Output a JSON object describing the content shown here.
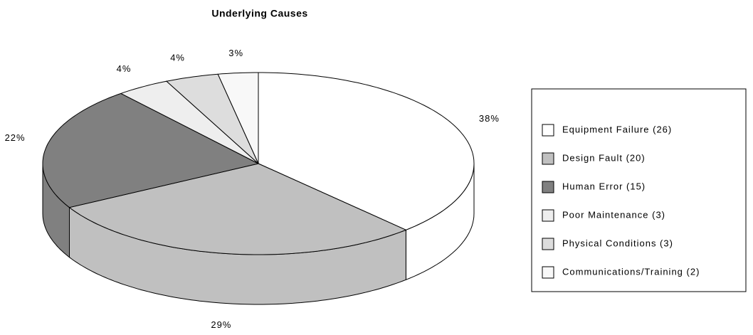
{
  "chart_data": {
    "type": "pie3d",
    "title": "Underlying Causes",
    "categories": [
      "Equipment Failure (26)",
      "Design Fault (20)",
      "Human Error (15)",
      "Poor Maintenance (3)",
      "Physical Conditions (3)",
      "Communications/Training (2)"
    ],
    "values": [
      38,
      29,
      22,
      4,
      4,
      3
    ],
    "value_labels": [
      "38%",
      "29%",
      "22%",
      "4%",
      "4%",
      "3%"
    ],
    "colors": [
      "#ffffff",
      "#c0c0c0",
      "#808080",
      "#eeeeee",
      "#dddddd",
      "#f8f8f8"
    ],
    "legend": "right"
  }
}
